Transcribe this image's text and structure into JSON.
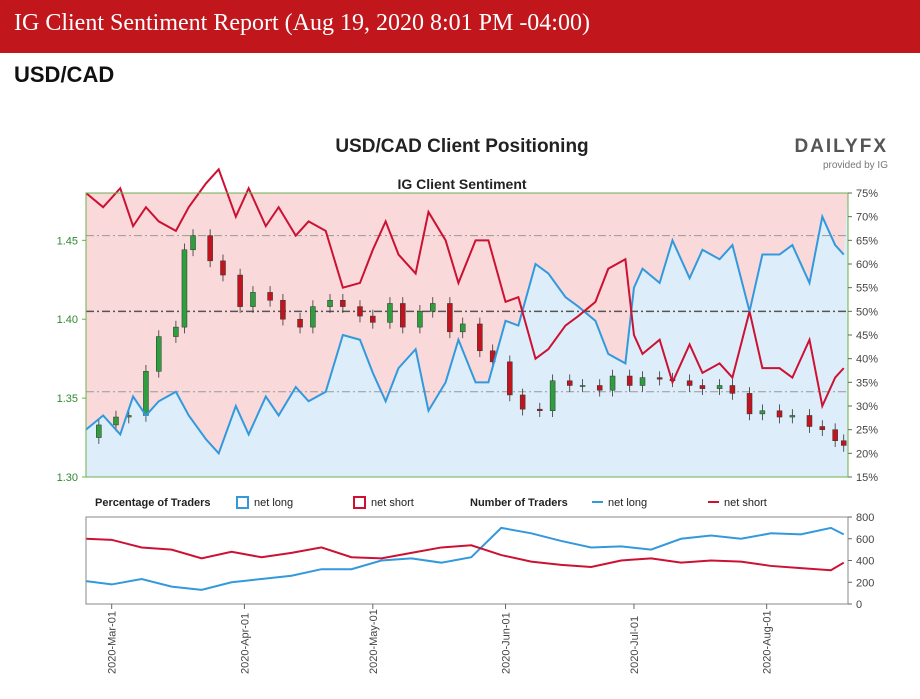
{
  "header": {
    "title": "IG Client Sentiment Report (Aug 19, 2020 8:01 PM -04:00)",
    "pair": "USD/CAD",
    "brand_color": "#c2161d"
  },
  "chart_data": [
    {
      "type": "line",
      "title": "USD/CAD Client Positioning",
      "subtitle": "IG Client Sentiment",
      "logo": "DAILYFX",
      "logo_sub": "provided by IG",
      "price_axis": {
        "ticks": [
          "1.30",
          "1.35",
          "1.40",
          "1.45"
        ],
        "ylim": [
          1.3,
          1.48
        ]
      },
      "pct_axis": {
        "ticks": [
          "15%",
          "20%",
          "25%",
          "30%",
          "35%",
          "40%",
          "45%",
          "50%",
          "55%",
          "60%",
          "65%",
          "70%",
          "75%"
        ],
        "ylim": [
          15,
          75
        ]
      },
      "reference_lines": [
        66,
        50,
        33
      ],
      "x_labels": [
        "2020-Mar-01",
        "2020-Apr-01",
        "2020-May-01",
        "2020-Jun-01",
        "2020-Jul-01",
        "2020-Aug-01"
      ],
      "x_range": [
        "2020-02-24",
        "2020-08-20"
      ],
      "colors": {
        "net_long": "#3399dd",
        "net_short": "#cc1133",
        "long_fill": "#ddeefa",
        "short_fill": "#f9d9da",
        "candle_up": "#2e9e3e",
        "candle_down": "#c0151e",
        "axis": "#6ab04c"
      },
      "net_long_pct": [
        [
          "2020-02-24",
          25
        ],
        [
          "2020-02-28",
          28
        ],
        [
          "2020-03-03",
          24
        ],
        [
          "2020-03-06",
          32
        ],
        [
          "2020-03-09",
          28
        ],
        [
          "2020-03-12",
          31
        ],
        [
          "2020-03-16",
          33
        ],
        [
          "2020-03-19",
          28
        ],
        [
          "2020-03-23",
          23
        ],
        [
          "2020-03-26",
          20
        ],
        [
          "2020-03-30",
          30
        ],
        [
          "2020-04-02",
          24
        ],
        [
          "2020-04-06",
          32
        ],
        [
          "2020-04-09",
          28
        ],
        [
          "2020-04-13",
          34
        ],
        [
          "2020-04-16",
          31
        ],
        [
          "2020-04-20",
          33
        ],
        [
          "2020-04-24",
          45
        ],
        [
          "2020-04-28",
          44
        ],
        [
          "2020-05-01",
          37
        ],
        [
          "2020-05-04",
          31
        ],
        [
          "2020-05-07",
          38
        ],
        [
          "2020-05-11",
          42
        ],
        [
          "2020-05-14",
          29
        ],
        [
          "2020-05-18",
          35
        ],
        [
          "2020-05-21",
          44
        ],
        [
          "2020-05-25",
          35
        ],
        [
          "2020-05-28",
          35
        ],
        [
          "2020-06-01",
          48
        ],
        [
          "2020-06-04",
          47
        ],
        [
          "2020-06-08",
          60
        ],
        [
          "2020-06-11",
          58
        ],
        [
          "2020-06-15",
          53
        ],
        [
          "2020-06-18",
          51
        ],
        [
          "2020-06-22",
          48
        ],
        [
          "2020-06-25",
          41
        ],
        [
          "2020-06-29",
          39
        ],
        [
          "2020-07-01",
          55
        ],
        [
          "2020-07-03",
          59
        ],
        [
          "2020-07-07",
          56
        ],
        [
          "2020-07-10",
          65
        ],
        [
          "2020-07-14",
          57
        ],
        [
          "2020-07-17",
          63
        ],
        [
          "2020-07-21",
          61
        ],
        [
          "2020-07-24",
          64
        ],
        [
          "2020-07-28",
          50
        ],
        [
          "2020-07-31",
          62
        ],
        [
          "2020-08-04",
          62
        ],
        [
          "2020-08-07",
          64
        ],
        [
          "2020-08-11",
          56
        ],
        [
          "2020-08-14",
          70
        ],
        [
          "2020-08-17",
          64
        ],
        [
          "2020-08-19",
          62
        ]
      ],
      "net_short_pct": [
        [
          "2020-02-24",
          75
        ],
        [
          "2020-02-28",
          72
        ],
        [
          "2020-03-03",
          76
        ],
        [
          "2020-03-06",
          68
        ],
        [
          "2020-03-09",
          72
        ],
        [
          "2020-03-12",
          69
        ],
        [
          "2020-03-16",
          67
        ],
        [
          "2020-03-19",
          72
        ],
        [
          "2020-03-23",
          77
        ],
        [
          "2020-03-26",
          80
        ],
        [
          "2020-03-30",
          70
        ],
        [
          "2020-04-02",
          76
        ],
        [
          "2020-04-06",
          68
        ],
        [
          "2020-04-09",
          72
        ],
        [
          "2020-04-13",
          66
        ],
        [
          "2020-04-16",
          69
        ],
        [
          "2020-04-20",
          67
        ],
        [
          "2020-04-24",
          55
        ],
        [
          "2020-04-28",
          56
        ],
        [
          "2020-05-01",
          63
        ],
        [
          "2020-05-04",
          69
        ],
        [
          "2020-05-07",
          62
        ],
        [
          "2020-05-11",
          58
        ],
        [
          "2020-05-14",
          71
        ],
        [
          "2020-05-18",
          65
        ],
        [
          "2020-05-21",
          56
        ],
        [
          "2020-05-25",
          65
        ],
        [
          "2020-05-28",
          65
        ],
        [
          "2020-06-01",
          52
        ],
        [
          "2020-06-04",
          53
        ],
        [
          "2020-06-08",
          40
        ],
        [
          "2020-06-11",
          42
        ],
        [
          "2020-06-15",
          47
        ],
        [
          "2020-06-18",
          49
        ],
        [
          "2020-06-22",
          52
        ],
        [
          "2020-06-25",
          59
        ],
        [
          "2020-06-29",
          61
        ],
        [
          "2020-07-01",
          45
        ],
        [
          "2020-07-03",
          41
        ],
        [
          "2020-07-07",
          44
        ],
        [
          "2020-07-10",
          35
        ],
        [
          "2020-07-14",
          43
        ],
        [
          "2020-07-17",
          37
        ],
        [
          "2020-07-21",
          39
        ],
        [
          "2020-07-24",
          36
        ],
        [
          "2020-07-28",
          50
        ],
        [
          "2020-07-31",
          38
        ],
        [
          "2020-08-04",
          38
        ],
        [
          "2020-08-07",
          36
        ],
        [
          "2020-08-11",
          44
        ],
        [
          "2020-08-14",
          30
        ],
        [
          "2020-08-17",
          36
        ],
        [
          "2020-08-19",
          38
        ]
      ],
      "price_close": [
        [
          "2020-02-24",
          1.325
        ],
        [
          "2020-02-27",
          1.333
        ],
        [
          "2020-03-02",
          1.338
        ],
        [
          "2020-03-05",
          1.339
        ],
        [
          "2020-03-09",
          1.367
        ],
        [
          "2020-03-12",
          1.389
        ],
        [
          "2020-03-16",
          1.395
        ],
        [
          "2020-03-18",
          1.444
        ],
        [
          "2020-03-20",
          1.453
        ],
        [
          "2020-03-24",
          1.437
        ],
        [
          "2020-03-27",
          1.428
        ],
        [
          "2020-03-31",
          1.408
        ],
        [
          "2020-04-03",
          1.417
        ],
        [
          "2020-04-07",
          1.412
        ],
        [
          "2020-04-10",
          1.4
        ],
        [
          "2020-04-14",
          1.395
        ],
        [
          "2020-04-17",
          1.408
        ],
        [
          "2020-04-21",
          1.412
        ],
        [
          "2020-04-24",
          1.408
        ],
        [
          "2020-04-28",
          1.402
        ],
        [
          "2020-05-01",
          1.398
        ],
        [
          "2020-05-05",
          1.41
        ],
        [
          "2020-05-08",
          1.395
        ],
        [
          "2020-05-12",
          1.405
        ],
        [
          "2020-05-15",
          1.41
        ],
        [
          "2020-05-19",
          1.392
        ],
        [
          "2020-05-22",
          1.397
        ],
        [
          "2020-05-26",
          1.38
        ],
        [
          "2020-05-29",
          1.373
        ],
        [
          "2020-06-02",
          1.352
        ],
        [
          "2020-06-05",
          1.343
        ],
        [
          "2020-06-09",
          1.342
        ],
        [
          "2020-06-12",
          1.361
        ],
        [
          "2020-06-16",
          1.358
        ],
        [
          "2020-06-19",
          1.358
        ],
        [
          "2020-06-23",
          1.355
        ],
        [
          "2020-06-26",
          1.364
        ],
        [
          "2020-06-30",
          1.358
        ],
        [
          "2020-07-03",
          1.363
        ],
        [
          "2020-07-07",
          1.362
        ],
        [
          "2020-07-10",
          1.361
        ],
        [
          "2020-07-14",
          1.358
        ],
        [
          "2020-07-17",
          1.356
        ],
        [
          "2020-07-21",
          1.358
        ],
        [
          "2020-07-24",
          1.353
        ],
        [
          "2020-07-28",
          1.34
        ],
        [
          "2020-07-31",
          1.342
        ],
        [
          "2020-08-04",
          1.338
        ],
        [
          "2020-08-07",
          1.339
        ],
        [
          "2020-08-11",
          1.332
        ],
        [
          "2020-08-14",
          1.33
        ],
        [
          "2020-08-17",
          1.323
        ],
        [
          "2020-08-19",
          1.32
        ]
      ],
      "legend": {
        "pct_title": "Percentage of Traders",
        "net_long": "net long",
        "net_short": "net short",
        "num_title": "Number of Traders"
      },
      "traders_axis": {
        "ticks": [
          "0",
          "200",
          "400",
          "600",
          "800"
        ],
        "ylim": [
          0,
          800
        ]
      },
      "traders_long": [
        [
          "2020-02-24",
          210
        ],
        [
          "2020-03-01",
          180
        ],
        [
          "2020-03-08",
          230
        ],
        [
          "2020-03-15",
          160
        ],
        [
          "2020-03-22",
          130
        ],
        [
          "2020-03-29",
          200
        ],
        [
          "2020-04-05",
          230
        ],
        [
          "2020-04-12",
          260
        ],
        [
          "2020-04-19",
          320
        ],
        [
          "2020-04-26",
          320
        ],
        [
          "2020-05-03",
          400
        ],
        [
          "2020-05-10",
          420
        ],
        [
          "2020-05-17",
          380
        ],
        [
          "2020-05-24",
          430
        ],
        [
          "2020-05-31",
          700
        ],
        [
          "2020-06-07",
          650
        ],
        [
          "2020-06-14",
          580
        ],
        [
          "2020-06-21",
          520
        ],
        [
          "2020-06-28",
          530
        ],
        [
          "2020-07-05",
          500
        ],
        [
          "2020-07-12",
          600
        ],
        [
          "2020-07-19",
          630
        ],
        [
          "2020-07-26",
          600
        ],
        [
          "2020-08-02",
          650
        ],
        [
          "2020-08-09",
          640
        ],
        [
          "2020-08-16",
          700
        ],
        [
          "2020-08-19",
          640
        ]
      ],
      "traders_short": [
        [
          "2020-02-24",
          600
        ],
        [
          "2020-03-01",
          590
        ],
        [
          "2020-03-08",
          520
        ],
        [
          "2020-03-15",
          500
        ],
        [
          "2020-03-22",
          420
        ],
        [
          "2020-03-29",
          480
        ],
        [
          "2020-04-05",
          430
        ],
        [
          "2020-04-12",
          470
        ],
        [
          "2020-04-19",
          520
        ],
        [
          "2020-04-26",
          430
        ],
        [
          "2020-05-03",
          420
        ],
        [
          "2020-05-10",
          470
        ],
        [
          "2020-05-17",
          520
        ],
        [
          "2020-05-24",
          540
        ],
        [
          "2020-05-31",
          450
        ],
        [
          "2020-06-07",
          390
        ],
        [
          "2020-06-14",
          360
        ],
        [
          "2020-06-21",
          340
        ],
        [
          "2020-06-28",
          400
        ],
        [
          "2020-07-05",
          420
        ],
        [
          "2020-07-12",
          380
        ],
        [
          "2020-07-19",
          400
        ],
        [
          "2020-07-26",
          390
        ],
        [
          "2020-08-02",
          350
        ],
        [
          "2020-08-09",
          330
        ],
        [
          "2020-08-16",
          310
        ],
        [
          "2020-08-19",
          380
        ]
      ]
    }
  ]
}
